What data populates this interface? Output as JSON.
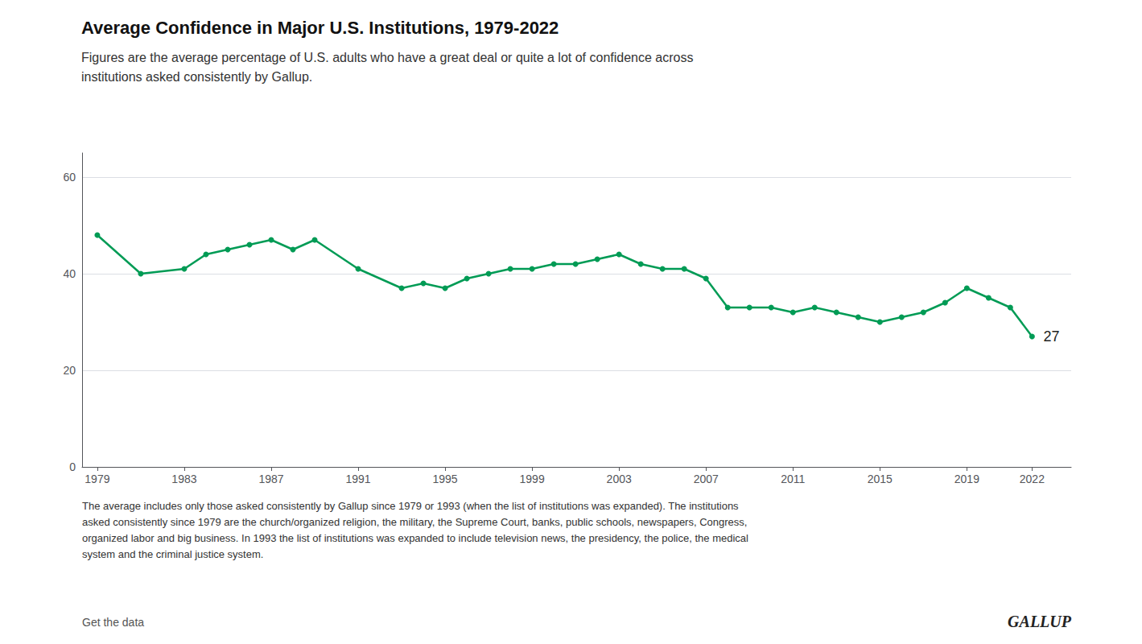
{
  "chart_data": {
    "type": "line",
    "title": "Average Confidence in Major U.S. Institutions, 1979-2022",
    "subtitle": "Figures are the average percentage of U.S. adults who have a great deal or quite a lot of confidence across\ninstitutions asked consistently by Gallup.",
    "footnote": "The average includes only those asked consistently by Gallup since 1979 or 1993 (when the list of institutions was expanded). The institutions\nasked consistently since 1979 are the church/organized religion, the military, the Supreme Court, banks, public schools, newspapers, Congress,\norganized labor and big business. In 1993 the list of institutions was expanded to include television news, the presidency, the police, the medical\nsystem and the criminal justice system.",
    "credits": [
      "Get the data",
      "GALLUP"
    ],
    "x": [
      1979,
      1981,
      1983,
      1984,
      1985,
      1986,
      1987,
      1988,
      1989,
      1991,
      1993,
      1994,
      1995,
      1996,
      1997,
      1998,
      1999,
      2000,
      2001,
      2002,
      2003,
      2004,
      2005,
      2006,
      2007,
      2008,
      2009,
      2010,
      2011,
      2012,
      2013,
      2014,
      2015,
      2016,
      2017,
      2018,
      2019,
      2020,
      2021,
      2022
    ],
    "values": [
      48,
      40,
      41,
      44,
      45,
      46,
      47,
      45,
      47,
      41,
      37,
      38,
      37,
      39,
      40,
      41,
      41,
      42,
      42,
      43,
      44,
      42,
      41,
      41,
      39,
      33,
      33,
      33,
      32,
      33,
      32,
      31,
      30,
      31,
      32,
      34,
      37,
      35,
      33,
      27
    ],
    "color": "#009B55",
    "marker": "circle",
    "xlim": [
      1978.3,
      2023.8
    ],
    "xticks": [
      1979,
      1983,
      1987,
      1991,
      1995,
      1999,
      2003,
      2007,
      2011,
      2015,
      2019,
      2022
    ],
    "ylim": [
      0,
      65
    ],
    "yticks": [
      0,
      20,
      40,
      60
    ],
    "grid": true,
    "annotations": [
      {
        "text": "27",
        "x": 2022,
        "y": 27
      }
    ]
  }
}
